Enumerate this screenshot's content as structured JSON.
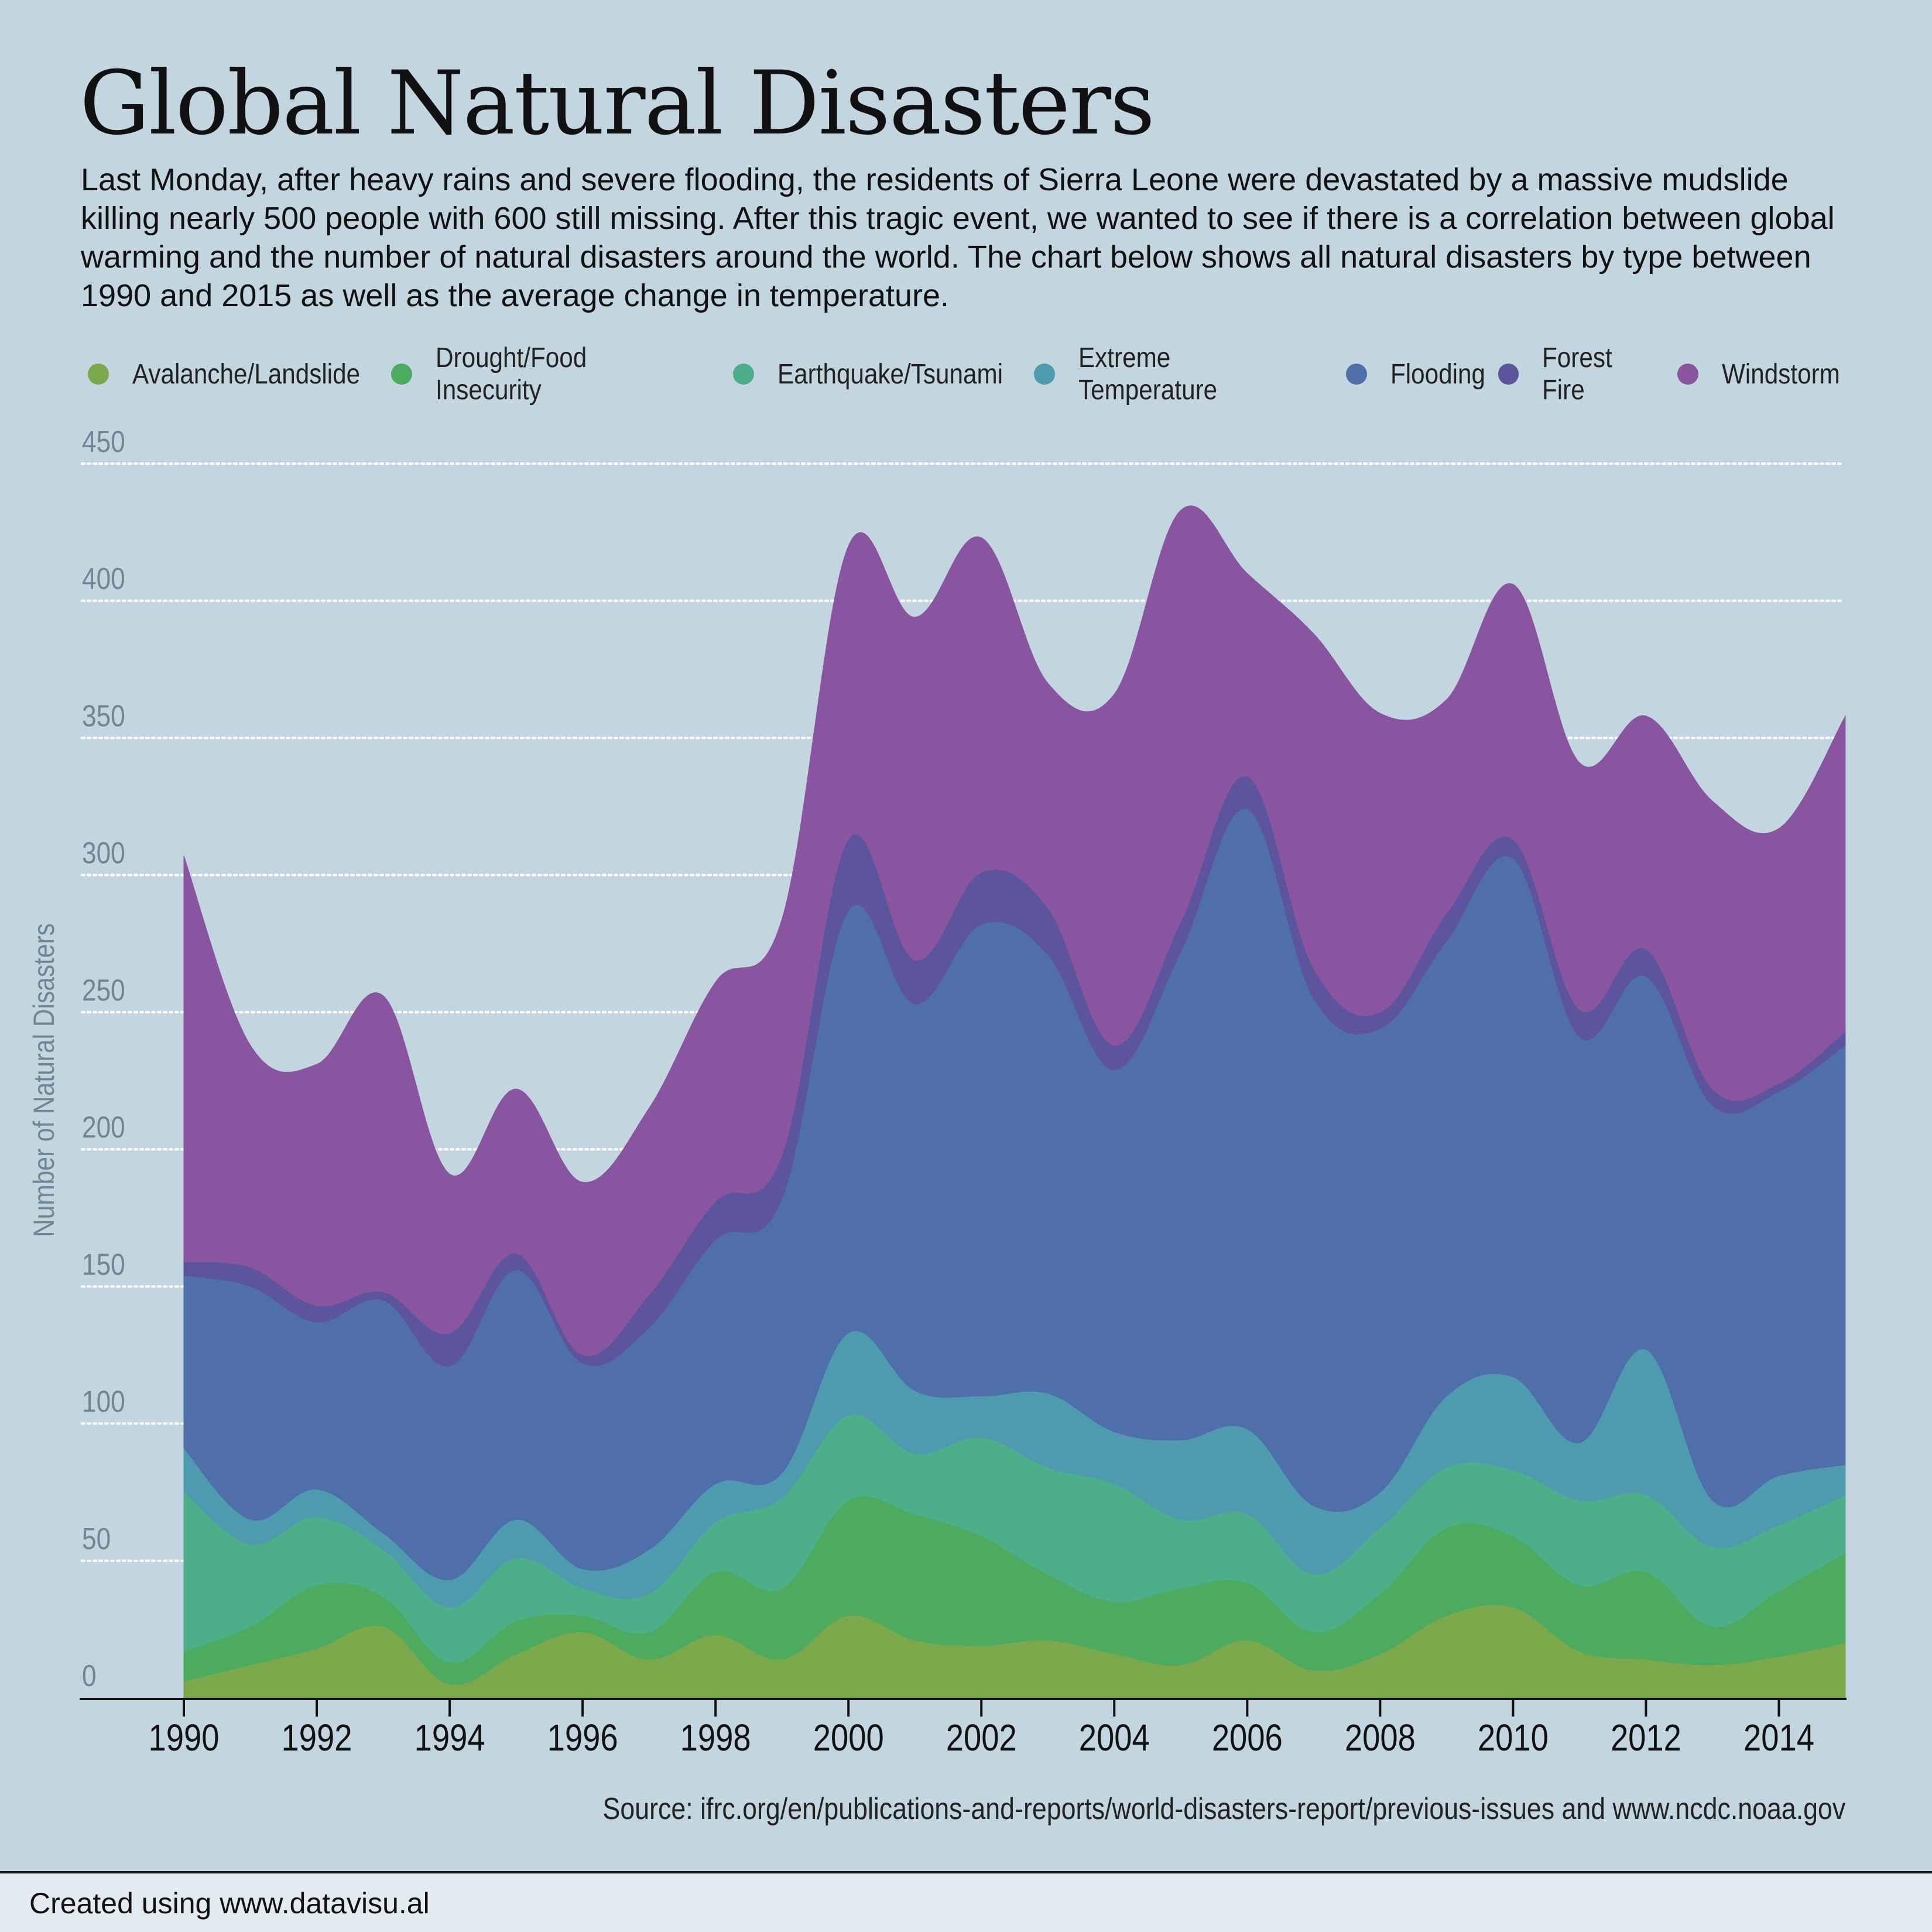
{
  "title": "Global Natural Disasters",
  "description": "Last Monday, after heavy rains and severe flooding, the residents of Sierra Leone were devastated by a massive mudslide killing nearly 500 people with 600 still missing. After this tragic event, we wanted to see if there is a correlation between global warming and the number of natural disasters around the world. The chart below shows all natural disasters by type between 1990 and 2015 as well as the average change in temperature.",
  "source": "Source: ifrc.org/en/publications-and-reports/world-disasters-report/previous-issues and www.ncdc.noaa.gov",
  "footer": "Created using www.datavisu.al",
  "chart_data": {
    "type": "area",
    "stacked": true,
    "x": [
      1990,
      1991,
      1992,
      1993,
      1994,
      1995,
      1996,
      1997,
      1998,
      1999,
      2000,
      2001,
      2002,
      2003,
      2004,
      2005,
      2006,
      2007,
      2008,
      2009,
      2010,
      2011,
      2012,
      2013,
      2014,
      2015
    ],
    "x_ticks": [
      "1990",
      "1992",
      "1994",
      "1996",
      "1998",
      "2000",
      "2002",
      "2004",
      "2006",
      "2008",
      "2010",
      "2012",
      "2014"
    ],
    "ylabel": "Number of Natural Disasters",
    "ylim": [
      0,
      450
    ],
    "y_ticks": [
      "0",
      "50",
      "100",
      "150",
      "200",
      "250",
      "300",
      "350",
      "400",
      "450"
    ],
    "grid": true,
    "legend_position": "top",
    "series": [
      {
        "name": "Avalanche/Landslide",
        "color": "#7aa84a",
        "values": [
          6,
          12,
          18,
          26,
          5,
          16,
          24,
          14,
          23,
          14,
          30,
          21,
          19,
          21,
          16,
          12,
          21,
          10,
          16,
          30,
          33,
          17,
          14,
          12,
          15,
          20
        ]
      },
      {
        "name": "Drought/Food Insecurity",
        "color": "#4cab5f",
        "values": [
          11,
          14,
          23,
          11,
          8,
          12,
          6,
          10,
          23,
          26,
          42,
          46,
          40,
          24,
          19,
          28,
          21,
          14,
          22,
          32,
          26,
          24,
          32,
          14,
          24,
          33
        ]
      },
      {
        "name": "Earthquake/Tsunami",
        "color": "#4daf8a",
        "values": [
          58,
          30,
          25,
          17,
          20,
          23,
          10,
          14,
          18,
          33,
          31,
          22,
          36,
          39,
          43,
          25,
          25,
          21,
          24,
          22,
          24,
          31,
          28,
          29,
          24,
          21
        ]
      },
      {
        "name": "Extreme Temperature",
        "color": "#4e9aae",
        "values": [
          16,
          9,
          10,
          6,
          10,
          14,
          7,
          16,
          14,
          9,
          30,
          23,
          15,
          27,
          19,
          29,
          31,
          25,
          13,
          26,
          34,
          21,
          53,
          17,
          18,
          11
        ]
      },
      {
        "name": "Flooding",
        "color": "#4f6faa",
        "values": [
          63,
          85,
          61,
          85,
          78,
          91,
          75,
          81,
          89,
          100,
          154,
          141,
          172,
          160,
          132,
          178,
          226,
          185,
          169,
          166,
          189,
          148,
          136,
          144,
          140,
          153
        ]
      },
      {
        "name": "Forest Fire",
        "color": "#5c549c",
        "values": [
          5,
          7,
          6,
          3,
          12,
          6,
          3,
          12,
          14,
          16,
          26,
          16,
          19,
          17,
          9,
          11,
          12,
          11,
          6,
          10,
          7,
          10,
          10,
          6,
          3,
          5
        ]
      },
      {
        "name": "Windstorm",
        "color": "#8955a0",
        "values": [
          148,
          81,
          88,
          108,
          58,
          60,
          63,
          68,
          80,
          86,
          107,
          125,
          122,
          82,
          128,
          150,
          74,
          122,
          109,
          78,
          93,
          90,
          85,
          105,
          93,
          115
        ]
      }
    ]
  }
}
